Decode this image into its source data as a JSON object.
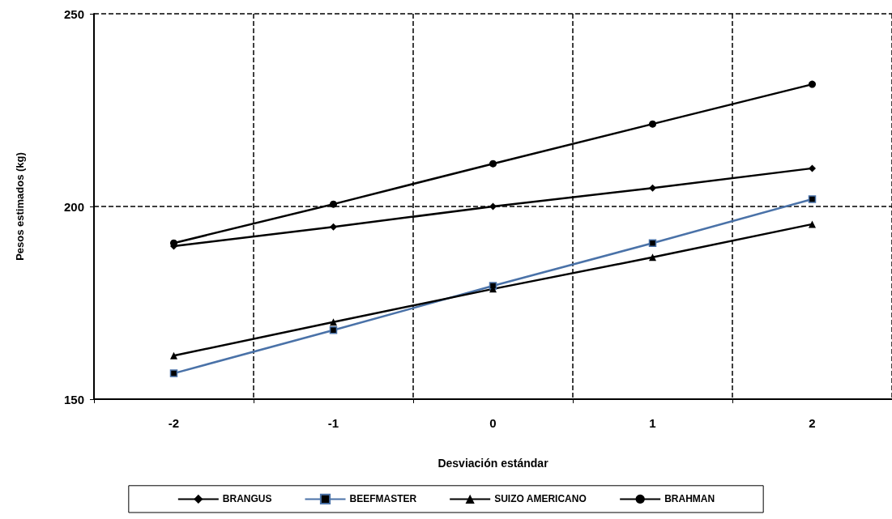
{
  "chart_data": {
    "type": "line",
    "xlabel": "Desviación estándar",
    "ylabel": "Pesos estimados (kg)",
    "categories": [
      "-2",
      "-1",
      "0",
      "1",
      "2"
    ],
    "series": [
      {
        "name": "BRANGUS",
        "color": "#000000",
        "marker": "diamond",
        "values": [
          189.7,
          194.7,
          200,
          204.8,
          209.9
        ]
      },
      {
        "name": "BEEFMASTER",
        "color": "#4a72a8",
        "marker": "square",
        "values": [
          156.7,
          167.9,
          179.4,
          190.5,
          201.9
        ]
      },
      {
        "name": "SUIZO AMERICANO",
        "color": "#000000",
        "marker": "triangle",
        "values": [
          161.3,
          170,
          178.6,
          186.8,
          195.4
        ]
      },
      {
        "name": "BRAHMAN",
        "color": "#000000",
        "marker": "circle",
        "values": [
          190.5,
          200.6,
          211.1,
          221.4,
          231.7
        ]
      }
    ],
    "ylim": [
      150,
      250
    ],
    "yticks": [
      150,
      200,
      250
    ],
    "grid": true,
    "legend": "bottom",
    "line_style": "solid"
  }
}
